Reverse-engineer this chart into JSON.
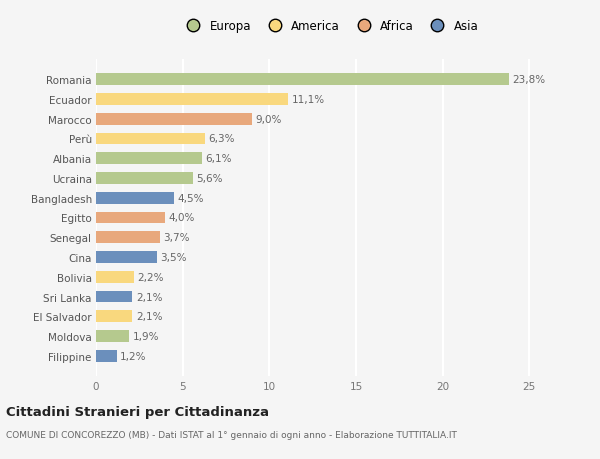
{
  "countries": [
    "Romania",
    "Ecuador",
    "Marocco",
    "Perù",
    "Albania",
    "Ucraina",
    "Bangladesh",
    "Egitto",
    "Senegal",
    "Cina",
    "Bolivia",
    "Sri Lanka",
    "El Salvador",
    "Moldova",
    "Filippine"
  ],
  "values": [
    23.8,
    11.1,
    9.0,
    6.3,
    6.1,
    5.6,
    4.5,
    4.0,
    3.7,
    3.5,
    2.2,
    2.1,
    2.1,
    1.9,
    1.2
  ],
  "labels": [
    "23,8%",
    "11,1%",
    "9,0%",
    "6,3%",
    "6,1%",
    "5,6%",
    "4,5%",
    "4,0%",
    "3,7%",
    "3,5%",
    "2,2%",
    "2,1%",
    "2,1%",
    "1,9%",
    "1,2%"
  ],
  "continents": [
    "Europa",
    "America",
    "Africa",
    "America",
    "Europa",
    "Europa",
    "Asia",
    "Africa",
    "Africa",
    "Asia",
    "America",
    "Asia",
    "America",
    "Europa",
    "Asia"
  ],
  "colors": {
    "Europa": "#b5c98e",
    "America": "#f9d87e",
    "Africa": "#e8a87c",
    "Asia": "#6b8fbc"
  },
  "legend_order": [
    "Europa",
    "America",
    "Africa",
    "Asia"
  ],
  "xlim": [
    0,
    27
  ],
  "xticks": [
    0,
    5,
    10,
    15,
    20,
    25
  ],
  "title": "Cittadini Stranieri per Cittadinanza",
  "subtitle": "COMUNE DI CONCOREZZO (MB) - Dati ISTAT al 1° gennaio di ogni anno - Elaborazione TUTTITALIA.IT",
  "bg_color": "#f5f5f5",
  "grid_color": "#ffffff",
  "bar_height": 0.6,
  "label_fontsize": 7.5,
  "tick_fontsize": 7.5,
  "legend_fontsize": 8.5,
  "title_fontsize": 9.5,
  "subtitle_fontsize": 6.5
}
